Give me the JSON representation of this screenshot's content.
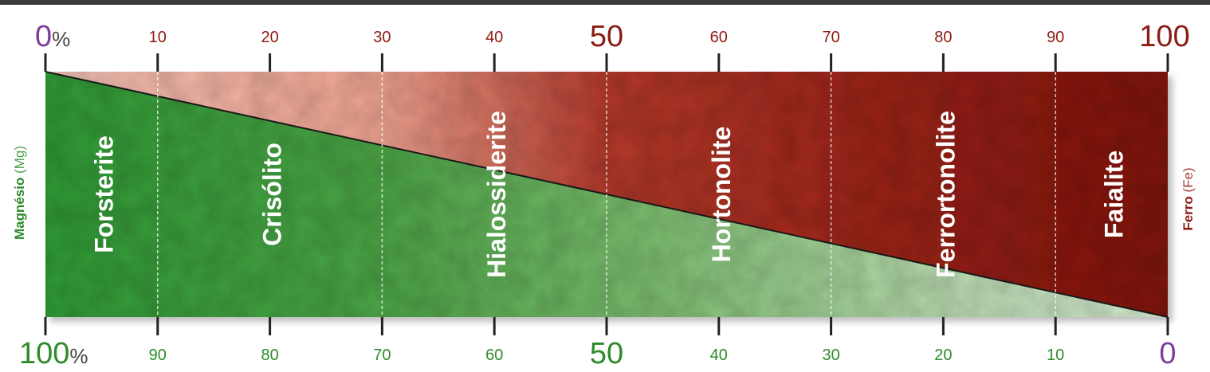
{
  "colors": {
    "magnesium_green": "#3f9a3c",
    "iron_red": "#8e1a12",
    "light_red": "#f2b5a6",
    "top_label_red": "#8b1c14",
    "bottom_label_green": "#2e8b2a",
    "purple": "#7b3f9a",
    "tick": "#222222"
  },
  "scale": {
    "fe_top_labels": [
      "10",
      "20",
      "30",
      "40",
      "50",
      "60",
      "70",
      "80",
      "90",
      "100"
    ],
    "fe_top_values": [
      10,
      20,
      30,
      40,
      50,
      60,
      70,
      80,
      90,
      100
    ],
    "fe_zero": "0",
    "fe_zero_suffix": "%",
    "mg_bottom_labels": [
      "90",
      "80",
      "70",
      "60",
      "50",
      "40",
      "30",
      "20",
      "10",
      "0"
    ],
    "mg_bottom_values": [
      90,
      80,
      70,
      60,
      50,
      40,
      30,
      20,
      10,
      0
    ],
    "mg_hundred": "100",
    "mg_hundred_suffix": "%"
  },
  "axis_labels": {
    "left_bold": "Magnésio",
    "left_normal": " (Mg)",
    "right_bold": "Ferro",
    "right_normal": " (Fe)"
  },
  "minerals": [
    {
      "name": "Forsterite",
      "from": 0,
      "to": 10
    },
    {
      "name": "Crisólito",
      "from": 10,
      "to": 30
    },
    {
      "name": "Hialossiderite",
      "from": 30,
      "to": 50
    },
    {
      "name": "Hortonolite",
      "from": 50,
      "to": 70
    },
    {
      "name": "Ferrortonolite",
      "from": 70,
      "to": 90
    },
    {
      "name": "Faialite",
      "from": 90,
      "to": 100
    }
  ]
}
